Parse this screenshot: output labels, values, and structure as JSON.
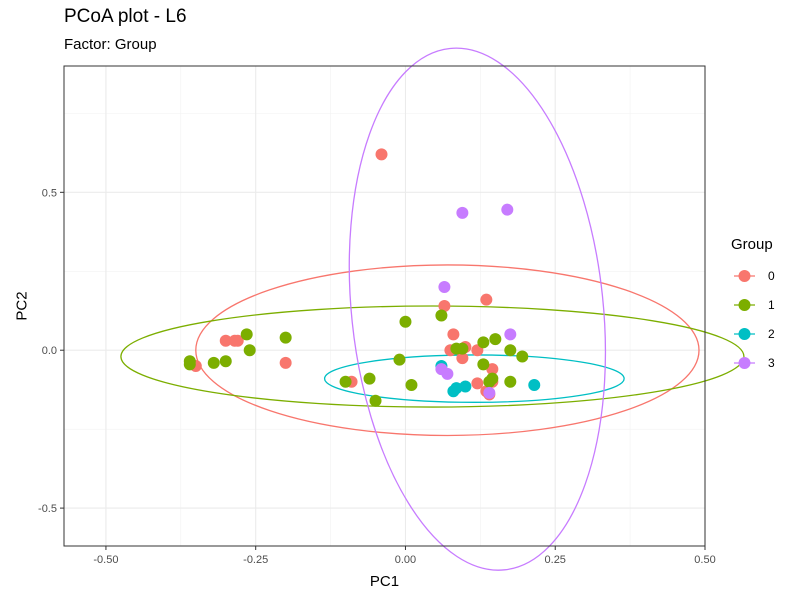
{
  "chart_data": {
    "type": "scatter",
    "title": "PCoA plot - L6",
    "subtitle": "Factor: Group",
    "xlabel": "PC1",
    "ylabel": "PC2",
    "xlim": [
      -0.57,
      0.5
    ],
    "ylim": [
      -0.62,
      0.9
    ],
    "xticks": [
      -0.5,
      -0.25,
      0.0,
      0.25,
      0.5
    ],
    "xtick_labels": [
      "-0.50",
      "-0.25",
      "0.00",
      "0.25",
      "0.50"
    ],
    "yticks": [
      -0.5,
      0.0,
      0.5
    ],
    "ytick_labels": [
      "-0.5",
      "0.0",
      "0.5"
    ],
    "grid": true,
    "legend": {
      "title": "Group",
      "position": "right"
    },
    "series": [
      {
        "name": "0",
        "color": "#F8766D",
        "points": [
          [
            -0.04,
            0.62
          ],
          [
            0.135,
            0.16
          ],
          [
            0.065,
            0.14
          ],
          [
            0.08,
            0.05
          ],
          [
            0.075,
            0.0
          ],
          [
            0.1,
            0.01
          ],
          [
            0.095,
            -0.025
          ],
          [
            0.12,
            0.0
          ],
          [
            -0.3,
            0.03
          ],
          [
            -0.285,
            0.03
          ],
          [
            -0.28,
            0.03
          ],
          [
            -0.2,
            -0.04
          ],
          [
            -0.09,
            -0.1
          ],
          [
            -0.35,
            -0.05
          ],
          [
            0.145,
            -0.06
          ],
          [
            0.12,
            -0.105
          ],
          [
            0.135,
            -0.13
          ],
          [
            0.145,
            -0.1
          ],
          [
            0.14,
            -0.14
          ]
        ],
        "ellipse": {
          "center": [
            0.07,
            0.0
          ],
          "semi_axes": [
            0.42,
            0.27
          ],
          "angle_deg": 0
        }
      },
      {
        "name": "1",
        "color": "#7CAE00",
        "points": [
          [
            -0.36,
            -0.035
          ],
          [
            -0.36,
            -0.045
          ],
          [
            -0.32,
            -0.04
          ],
          [
            -0.3,
            -0.035
          ],
          [
            -0.265,
            0.05
          ],
          [
            -0.26,
            0.0
          ],
          [
            -0.2,
            0.04
          ],
          [
            -0.1,
            -0.1
          ],
          [
            -0.06,
            -0.09
          ],
          [
            -0.05,
            -0.16
          ],
          [
            -0.01,
            -0.03
          ],
          [
            0.0,
            0.09
          ],
          [
            0.01,
            -0.11
          ],
          [
            0.06,
            0.11
          ],
          [
            0.085,
            0.005
          ],
          [
            0.095,
            0.005
          ],
          [
            0.13,
            0.025
          ],
          [
            0.15,
            0.035
          ],
          [
            0.13,
            -0.045
          ],
          [
            0.175,
            0.0
          ],
          [
            0.195,
            -0.02
          ],
          [
            0.145,
            -0.09
          ],
          [
            0.175,
            -0.1
          ],
          [
            0.14,
            -0.1
          ]
        ],
        "ellipse": {
          "center": [
            0.045,
            -0.02
          ],
          "semi_axes": [
            0.52,
            0.16
          ],
          "angle_deg": 0
        }
      },
      {
        "name": "2",
        "color": "#00BFC4",
        "points": [
          [
            0.06,
            -0.05
          ],
          [
            0.08,
            -0.13
          ],
          [
            0.085,
            -0.12
          ],
          [
            0.1,
            -0.115
          ],
          [
            0.215,
            -0.11
          ]
        ],
        "ellipse": {
          "center": [
            0.115,
            -0.09
          ],
          "semi_axes": [
            0.25,
            0.075
          ],
          "angle_deg": 0
        }
      },
      {
        "name": "3",
        "color": "#C77CFF",
        "points": [
          [
            0.095,
            0.435
          ],
          [
            0.17,
            0.445
          ],
          [
            0.065,
            0.2
          ],
          [
            0.175,
            0.05
          ],
          [
            0.06,
            -0.06
          ],
          [
            0.07,
            -0.075
          ],
          [
            0.14,
            -0.135
          ]
        ],
        "ellipse": {
          "center": [
            0.12,
            0.13
          ],
          "semi_axes": [
            0.21,
            0.83
          ],
          "angle_deg": -6
        }
      }
    ]
  }
}
